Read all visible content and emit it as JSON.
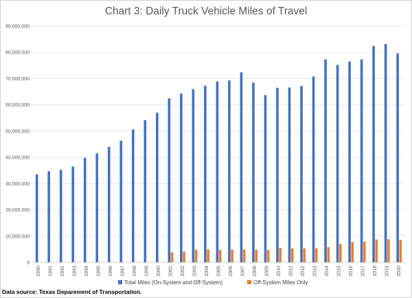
{
  "chart_data": {
    "type": "bar",
    "title": "Chart 3: Daily Truck Vehicle Miles of Travel",
    "xlabel": "",
    "ylabel": "",
    "ylim": [
      0,
      90000000
    ],
    "yticks": [
      "0",
      "10,000,000",
      "20,000,000",
      "30,000,000",
      "40,000,000",
      "50,000,000",
      "60,000,000",
      "70,000,000",
      "80,000,000",
      "90,000,000"
    ],
    "grid": true,
    "legend_position": "bottom",
    "categories": [
      "1990",
      "1991",
      "1992",
      "1993",
      "1994",
      "1995",
      "1996",
      "1997",
      "1998",
      "1999",
      "2000",
      "2001",
      "2002",
      "2003",
      "2004",
      "2005",
      "2006",
      "2007",
      "2008",
      "2009",
      "2010",
      "2011",
      "2012",
      "2013",
      "2014",
      "2015",
      "2016",
      "2017",
      "2018",
      "2019",
      "2020"
    ],
    "series": [
      {
        "name": "Total Miles (On-System and Off-System)",
        "color": "#4472c4",
        "values": [
          33500000,
          34700000,
          35200000,
          36500000,
          39800000,
          41500000,
          44000000,
          46300000,
          50600000,
          54200000,
          57000000,
          62500000,
          64300000,
          66000000,
          67300000,
          68900000,
          69300000,
          72400000,
          68500000,
          63700000,
          66500000,
          66600000,
          67200000,
          70800000,
          77300000,
          75200000,
          76500000,
          77300000,
          82400000,
          83200000,
          79600000
        ]
      },
      {
        "name": "Off-System Miles Only",
        "color": "#ed7d31",
        "values": [
          null,
          null,
          null,
          null,
          null,
          null,
          null,
          null,
          null,
          null,
          null,
          3800000,
          4100000,
          4800000,
          4900000,
          4700000,
          4800000,
          4900000,
          4800000,
          4700000,
          5500000,
          5300000,
          5300000,
          5400000,
          5800000,
          7000000,
          7700000,
          7900000,
          8700000,
          8800000,
          8500000
        ]
      }
    ]
  },
  "source_note": "Data source: Texas Deparement of Transportation."
}
